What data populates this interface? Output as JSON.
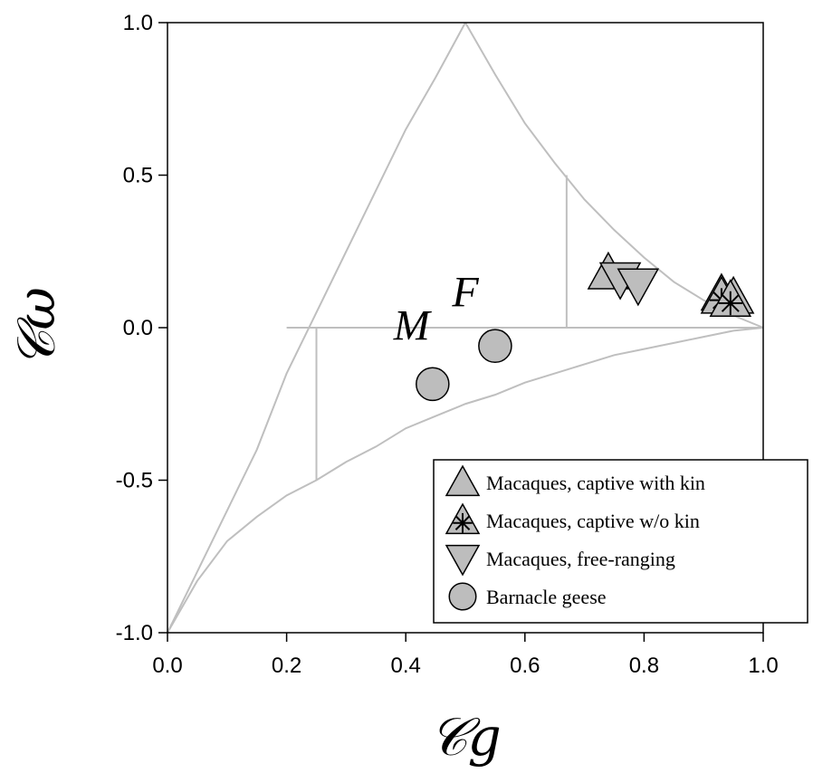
{
  "chart_data": {
    "type": "scatter",
    "xlabel": "𝒞g",
    "ylabel": "𝒞ω",
    "xlim": [
      0.0,
      1.0
    ],
    "ylim": [
      -1.0,
      1.0
    ],
    "xticks": [
      "0.0",
      "0.2",
      "0.4",
      "0.6",
      "0.8",
      "1.0"
    ],
    "yticks": [
      "-1.0",
      "-0.5",
      "0.0",
      "0.5",
      "1.0"
    ],
    "grid": false,
    "legend_position": "bottom-right",
    "boundary_lines": [
      {
        "kind": "curve",
        "points": [
          [
            0.0,
            -1.0
          ],
          [
            0.05,
            -0.8
          ],
          [
            0.1,
            -0.6
          ],
          [
            0.15,
            -0.4
          ],
          [
            0.2,
            -0.15
          ],
          [
            0.25,
            0.05
          ],
          [
            0.3,
            0.25
          ],
          [
            0.35,
            0.45
          ],
          [
            0.4,
            0.65
          ],
          [
            0.45,
            0.82
          ],
          [
            0.5,
            1.0
          ]
        ]
      },
      {
        "kind": "curve",
        "points": [
          [
            0.5,
            1.0
          ],
          [
            0.55,
            0.83
          ],
          [
            0.6,
            0.67
          ],
          [
            0.65,
            0.54
          ],
          [
            0.7,
            0.42
          ],
          [
            0.75,
            0.32
          ],
          [
            0.8,
            0.23
          ],
          [
            0.85,
            0.15
          ],
          [
            0.9,
            0.09
          ],
          [
            0.95,
            0.04
          ],
          [
            1.0,
            0.0
          ]
        ]
      },
      {
        "kind": "curve",
        "points": [
          [
            0.0,
            -1.0
          ],
          [
            0.05,
            -0.83
          ],
          [
            0.1,
            -0.7
          ],
          [
            0.15,
            -0.62
          ],
          [
            0.2,
            -0.55
          ],
          [
            0.25,
            -0.5
          ],
          [
            0.3,
            -0.44
          ],
          [
            0.35,
            -0.39
          ],
          [
            0.4,
            -0.33
          ],
          [
            0.45,
            -0.29
          ],
          [
            0.5,
            -0.25
          ],
          [
            0.55,
            -0.22
          ],
          [
            0.6,
            -0.18
          ],
          [
            0.65,
            -0.15
          ],
          [
            0.7,
            -0.12
          ],
          [
            0.75,
            -0.09
          ],
          [
            0.8,
            -0.07
          ],
          [
            0.85,
            -0.05
          ],
          [
            0.9,
            -0.03
          ],
          [
            0.95,
            -0.01
          ],
          [
            1.0,
            0.0
          ]
        ]
      },
      {
        "kind": "segment",
        "points": [
          [
            0.2,
            0.0
          ],
          [
            1.0,
            0.0
          ]
        ]
      },
      {
        "kind": "segment",
        "points": [
          [
            0.25,
            0.0
          ],
          [
            0.25,
            -0.5
          ]
        ]
      },
      {
        "kind": "segment",
        "points": [
          [
            0.67,
            0.0
          ],
          [
            0.67,
            0.5
          ]
        ]
      }
    ],
    "series": [
      {
        "name": "Macaques, captive with kin",
        "marker": "triangle-up",
        "points": [
          [
            0.74,
            0.18
          ],
          [
            0.93,
            0.11
          ],
          [
            0.95,
            0.1
          ]
        ]
      },
      {
        "name": "Macaques, captive w/o kin",
        "marker": "triangle-up-asterisk",
        "points": [
          [
            0.93,
            0.1
          ],
          [
            0.945,
            0.09
          ]
        ]
      },
      {
        "name": "Macaques, free-ranging",
        "marker": "triangle-down",
        "points": [
          [
            0.76,
            0.16
          ],
          [
            0.79,
            0.14
          ]
        ]
      },
      {
        "name": "Barnacle geese",
        "marker": "circle",
        "points": [
          [
            0.445,
            -0.185
          ],
          [
            0.55,
            -0.06
          ]
        ]
      }
    ],
    "annotations": [
      {
        "text": "M",
        "x": 0.41,
        "y": -0.04
      },
      {
        "text": "F",
        "x": 0.5,
        "y": 0.07
      }
    ],
    "colors": {
      "marker_fill": "#bdbdbd",
      "marker_stroke": "#000000",
      "boundary": "#bfbfbf"
    }
  }
}
